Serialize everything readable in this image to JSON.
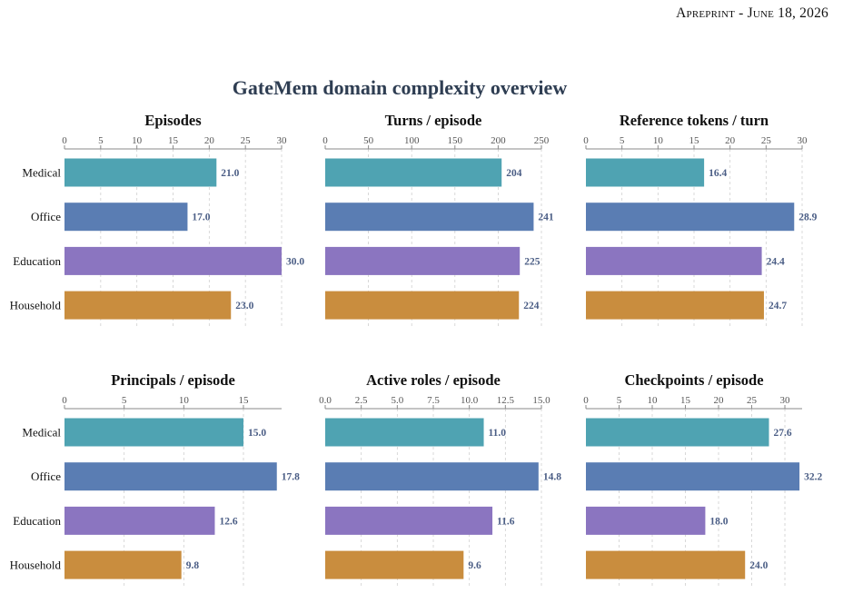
{
  "header": {
    "first_letter": "A",
    "rest": "preprint",
    "dash": " - ",
    "month_first": "J",
    "month_rest": "une",
    "date_rest": " 18, 2026"
  },
  "figure": {
    "suptitle": "GateMem domain complexity overview"
  },
  "colors": {
    "Medical": "#4fa3b2",
    "Office": "#5a7db3",
    "Education": "#8b75c0",
    "Household": "#c98d3e",
    "data_label": "#4a5d85",
    "suptitle": "#2e3d52"
  },
  "chart_data": [
    {
      "type": "bar",
      "orientation": "horizontal",
      "title": "Episodes",
      "categories": [
        "Medical",
        "Office",
        "Education",
        "Household"
      ],
      "values": [
        21.0,
        17.0,
        30.0,
        23.0
      ],
      "value_labels": [
        "21.0",
        "17.0",
        "30.0",
        "23.0"
      ],
      "xlim": [
        0,
        30
      ],
      "xticks": [
        0,
        5,
        10,
        15,
        20,
        25,
        30
      ],
      "xtick_labels": [
        "0",
        "5",
        "10",
        "15",
        "20",
        "25",
        "30"
      ],
      "grid": true
    },
    {
      "type": "bar",
      "orientation": "horizontal",
      "title": "Turns / episode",
      "categories": [
        "Medical",
        "Office",
        "Education",
        "Household"
      ],
      "values": [
        204,
        241,
        225,
        224
      ],
      "value_labels": [
        "204",
        "241",
        "225",
        "224"
      ],
      "xlim": [
        0,
        250
      ],
      "xticks": [
        0,
        50,
        100,
        150,
        200,
        250
      ],
      "xtick_labels": [
        "0",
        "50",
        "100",
        "150",
        "200",
        "250"
      ],
      "grid": true
    },
    {
      "type": "bar",
      "orientation": "horizontal",
      "title": "Reference tokens / turn",
      "categories": [
        "Medical",
        "Office",
        "Education",
        "Household"
      ],
      "values": [
        16.4,
        28.9,
        24.4,
        24.7
      ],
      "value_labels": [
        "16.4",
        "28.9",
        "24.4",
        "24.7"
      ],
      "xlim": [
        0,
        30
      ],
      "xticks": [
        0,
        5,
        10,
        15,
        20,
        25,
        30
      ],
      "xtick_labels": [
        "0",
        "5",
        "10",
        "15",
        "20",
        "25",
        "30"
      ],
      "grid": true
    },
    {
      "type": "bar",
      "orientation": "horizontal",
      "title": "Principals / episode",
      "categories": [
        "Medical",
        "Office",
        "Education",
        "Household"
      ],
      "values": [
        15.0,
        17.8,
        12.6,
        9.8
      ],
      "value_labels": [
        "15.0",
        "17.8",
        "12.6",
        "9.8"
      ],
      "xlim": [
        0,
        18.2
      ],
      "xticks": [
        0,
        5,
        10,
        15
      ],
      "xtick_labels": [
        "0",
        "5",
        "10",
        "15"
      ],
      "grid": true
    },
    {
      "type": "bar",
      "orientation": "horizontal",
      "title": "Active roles / episode",
      "categories": [
        "Medical",
        "Office",
        "Education",
        "Household"
      ],
      "values": [
        11.0,
        14.8,
        11.6,
        9.6
      ],
      "value_labels": [
        "11.0",
        "14.8",
        "11.6",
        "9.6"
      ],
      "xlim": [
        0,
        15.0
      ],
      "xticks": [
        0,
        2.5,
        5,
        7.5,
        10,
        12.5,
        15
      ],
      "xtick_labels": [
        "0.0",
        "2.5",
        "5.0",
        "7.5",
        "10.0",
        "12.5",
        "15.0"
      ],
      "grid": true
    },
    {
      "type": "bar",
      "orientation": "horizontal",
      "title": "Checkpoints / episode",
      "categories": [
        "Medical",
        "Office",
        "Education",
        "Household"
      ],
      "values": [
        27.6,
        32.2,
        18.0,
        24.0
      ],
      "value_labels": [
        "27.6",
        "32.2",
        "18.0",
        "24.0"
      ],
      "xlim": [
        0,
        32.6
      ],
      "xticks": [
        0,
        5,
        10,
        15,
        20,
        25,
        30
      ],
      "xtick_labels": [
        "0",
        "5",
        "10",
        "15",
        "20",
        "25",
        "30"
      ],
      "grid": true
    }
  ]
}
